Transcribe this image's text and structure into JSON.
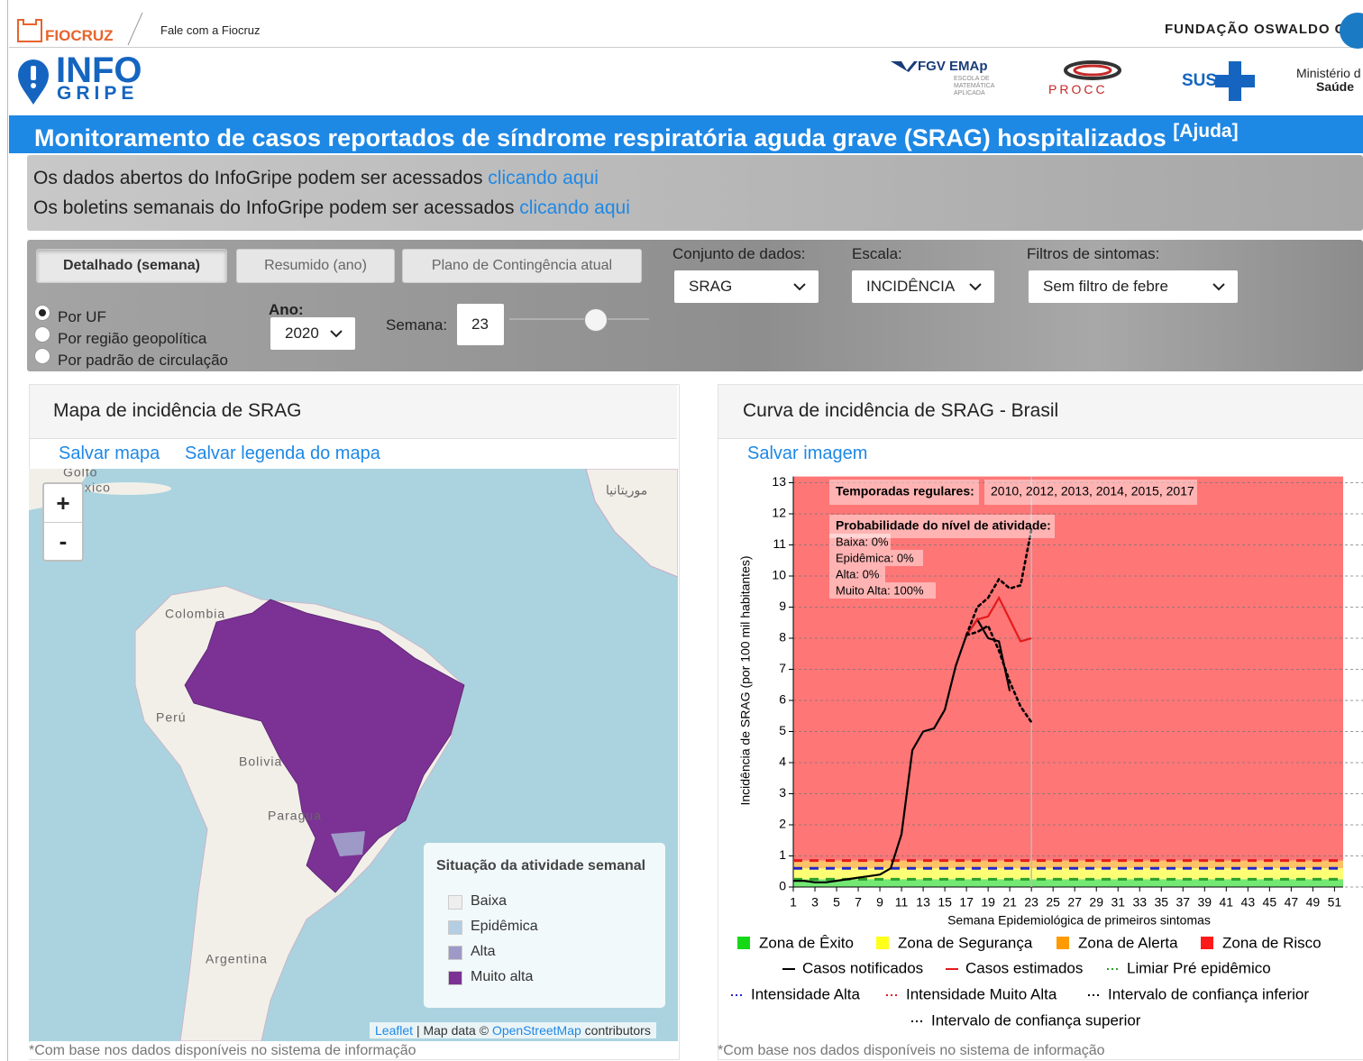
{
  "header": {
    "fiocruz": "FIOCRUZ",
    "contact": "Fale com a Fiocruz",
    "foundation": "FUNDAÇÃO OSWALDO C",
    "logo_top": "INFO",
    "logo_bottom": "GRIPE",
    "fgv": "FGV EMAp",
    "fgv_sub": "ESCOLA DE MATEMÁTICA APLICADA",
    "procc": "PROCC",
    "sus": "SUS",
    "ministry": "Ministério d",
    "ministry_sub": "Saúde"
  },
  "title": "Monitoramento de casos reportados de síndrome respiratória aguda grave (SRAG) hospitalizados",
  "help": "[Ajuda]",
  "info": [
    {
      "text": "Os dados abertos do InfoGripe podem ser acessados",
      "link": "clicando aqui"
    },
    {
      "text": "Os boletins semanais do InfoGripe podem ser acessados",
      "link": "clicando aqui"
    }
  ],
  "controls": {
    "tabs": [
      "Detalhado (semana)",
      "Resumido (ano)",
      "Plano de Contingência atual"
    ],
    "dataset": {
      "label": "Conjunto de dados:",
      "value": "SRAG"
    },
    "scale": {
      "label": "Escala:",
      "value": "INCIDÊNCIA"
    },
    "filter": {
      "label": "Filtros de sintomas:",
      "value": "Sem filtro de febre"
    },
    "regions": [
      "Por UF",
      "Por região geopolítica",
      "Por padrão de circulação"
    ],
    "year": {
      "label": "Ano:",
      "value": "2020"
    },
    "week": {
      "label": "Semana:",
      "value": 23
    }
  },
  "map_panel": {
    "title": "Mapa de incidência de SRAG",
    "links": [
      "Salvar mapa",
      "Salvar legenda do mapa"
    ],
    "zoom": [
      "+",
      "-"
    ],
    "places": [
      "Colombia",
      "Perú",
      "Bolivia",
      "Paragua",
      "Argentina",
      "موريتانيا",
      "Golfo",
      "xico"
    ],
    "legend": {
      "title": "Situação da atividade semanal",
      "items": [
        {
          "name": "Baixa",
          "color": "#eeeeee"
        },
        {
          "name": "Epidêmica",
          "color": "#b3cde3"
        },
        {
          "name": "Alta",
          "color": "#9e9ac8"
        },
        {
          "name": "Muito alta",
          "color": "#7b3294"
        }
      ]
    },
    "attribution": {
      "leaflet": "Leaflet",
      "text": "| Map data ©",
      "osm": "OpenStreetMap",
      "contributors": "contributors"
    },
    "footnote": "*Com base nos dados disponíveis no sistema de informação"
  },
  "chart_panel": {
    "title": "Curva de incidência de SRAG - Brasil",
    "link": "Salvar imagem",
    "footnote": "*Com base nos dados disponíveis no sistema de informação",
    "chart": {
      "type": "line",
      "x_label": "Semana Epidemiológica de primeiros sintomas",
      "y_label": "Incidência de SRAG (por 100 mil habitantes)",
      "xlim": [
        1,
        51.8
      ],
      "ylim": [
        0,
        13.2
      ],
      "xticks": [
        1,
        3,
        5,
        7,
        9,
        11,
        13,
        15,
        17,
        19,
        21,
        23,
        25,
        27,
        29,
        31,
        33,
        35,
        37,
        39,
        41,
        43,
        45,
        47,
        49,
        51
      ],
      "yticks": [
        0,
        1,
        2,
        3,
        4,
        5,
        6,
        7,
        8,
        9,
        10,
        11,
        12,
        13
      ],
      "grid": true,
      "x": [
        1,
        2,
        3,
        4,
        5,
        6,
        7,
        8,
        9,
        10,
        11,
        12,
        13,
        14,
        15,
        16,
        17,
        18,
        19,
        20,
        21,
        22,
        23
      ],
      "series": [
        {
          "name": "Casos notificados",
          "color": "#000000",
          "style": "solid",
          "values": [
            0.2,
            0.2,
            0.15,
            0.15,
            0.2,
            0.25,
            0.3,
            0.35,
            0.4,
            0.6,
            1.7,
            4.4,
            5.0,
            5.1,
            5.7,
            7.1,
            8.1,
            8.6,
            8.0,
            7.9,
            6.3,
            null,
            null
          ]
        },
        {
          "name": "Casos estimados",
          "color": "#e41a1c",
          "style": "solid",
          "values": [
            null,
            null,
            null,
            null,
            null,
            null,
            null,
            null,
            null,
            null,
            null,
            null,
            null,
            null,
            null,
            null,
            8.1,
            8.6,
            8.7,
            9.3,
            8.6,
            7.9,
            8.0
          ]
        },
        {
          "name": "Intervalo de confiança inferior",
          "color": "#000000",
          "style": "dotted",
          "values": [
            null,
            null,
            null,
            null,
            null,
            null,
            null,
            null,
            null,
            null,
            null,
            null,
            null,
            null,
            null,
            null,
            8.1,
            8.2,
            8.4,
            7.6,
            6.6,
            5.8,
            5.3
          ]
        },
        {
          "name": "Intervalo de confiança superior",
          "color": "#000000",
          "style": "dotted",
          "values": [
            null,
            null,
            null,
            null,
            null,
            null,
            null,
            null,
            null,
            null,
            null,
            null,
            null,
            null,
            null,
            null,
            8.1,
            9.0,
            9.3,
            9.9,
            9.6,
            9.7,
            11.5
          ]
        }
      ],
      "thresholds": [
        {
          "name": "Limiar Pré epidêmico",
          "color": "#2ca02c",
          "value": 0.25
        },
        {
          "name": "Intensidade Alta",
          "color": "#2424c8",
          "value": 0.6
        },
        {
          "name": "Intensidade Muito Alta",
          "color": "#e41a1c",
          "value": 0.85
        }
      ],
      "zones": [
        {
          "name": "Zona de Êxito",
          "color": "#16d916"
        },
        {
          "name": "Zona de Segurança",
          "color": "#ffff1a"
        },
        {
          "name": "Zona de Alerta",
          "color": "#ff9a00"
        },
        {
          "name": "Zona de Risco",
          "color": "#ff1a1a"
        }
      ],
      "annotations": {
        "seasons_label": "Temporadas regulares:",
        "seasons": "2010, 2012, 2013, 2014, 2015, 2017",
        "probability_label": "Probabilidade do nível de atividade:",
        "probabilities": [
          "Baixa: 0%",
          "Epidêmica: 0%",
          "Alta: 0%",
          "Muito Alta: 100%"
        ]
      }
    }
  }
}
